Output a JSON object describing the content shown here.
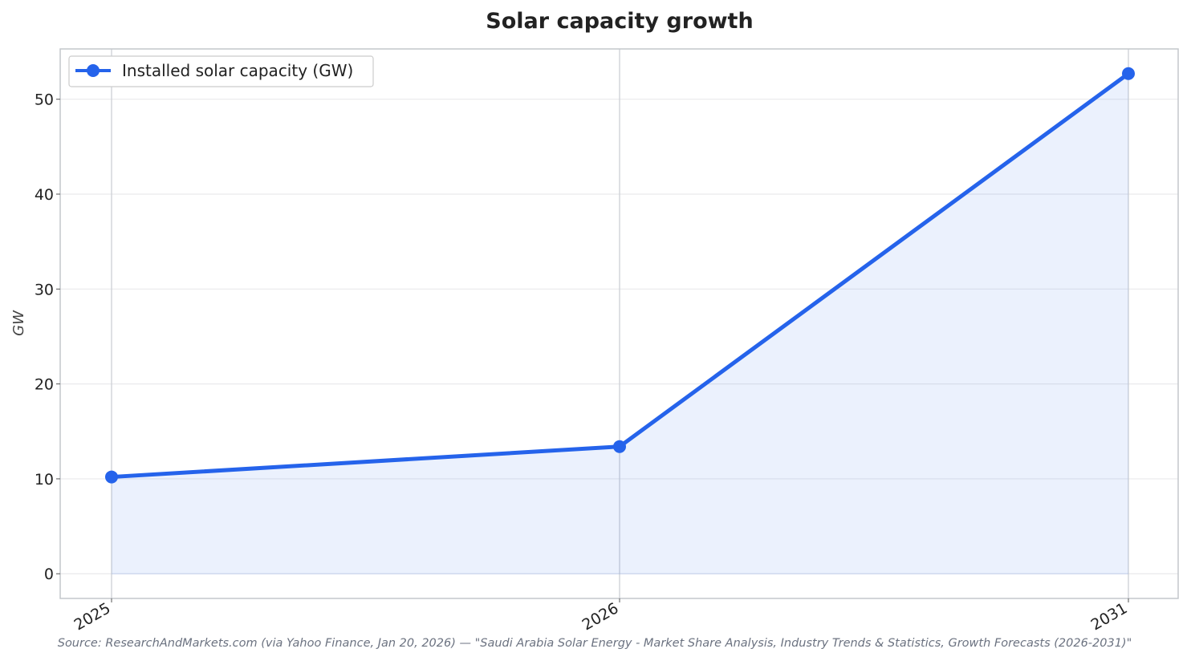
{
  "chart_data": {
    "type": "line",
    "title": "Solar capacity growth",
    "xlabel": "",
    "ylabel": "GW",
    "categories": [
      "2025",
      "2026",
      "2031"
    ],
    "series": [
      {
        "name": "Installed solar capacity (GW)",
        "values": [
          10.2,
          13.4,
          52.7
        ],
        "color": "#2563eb"
      }
    ],
    "yticks": [
      "0",
      "10",
      "20",
      "30",
      "40",
      "50"
    ],
    "ylim": [
      -2.6,
      55.3
    ],
    "grid": true,
    "area_fill": true,
    "legend_position": "top-left",
    "source": "Source: ResearchAndMarkets.com (via Yahoo Finance, Jan 20, 2026) — \"Saudi Arabia Solar Energy - Market Share Analysis, Industry Trends & Statistics, Growth Forecasts (2026-2031)\""
  }
}
